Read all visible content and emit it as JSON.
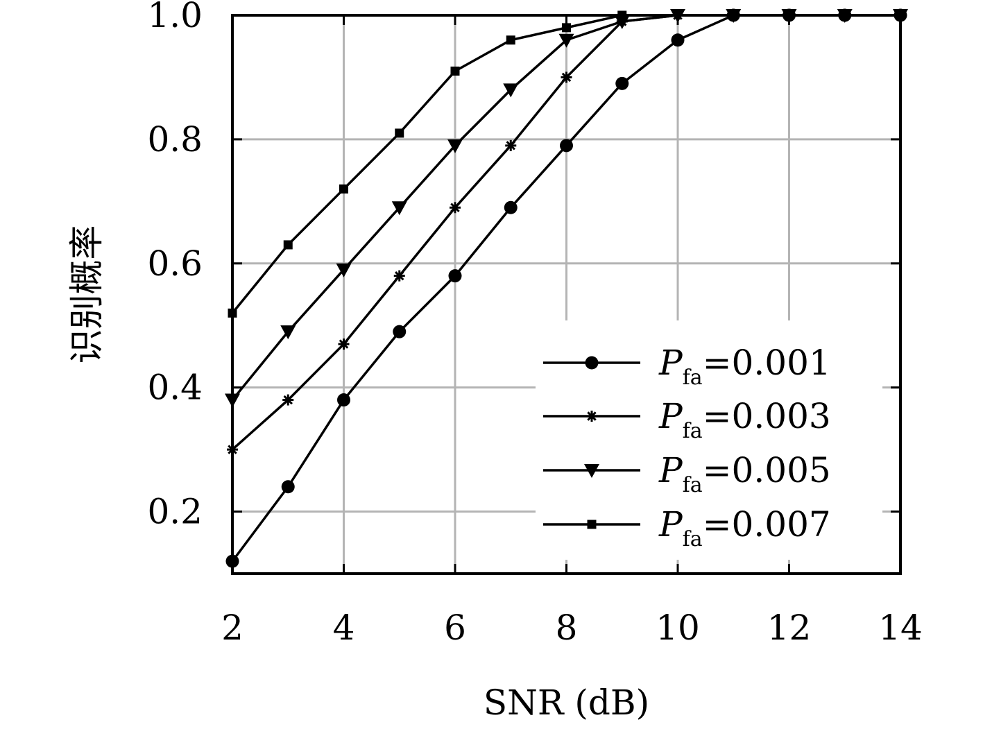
{
  "chart_data": {
    "type": "line",
    "title": "",
    "xlabel": "SNR (dB)",
    "ylabel": "识别概率",
    "xlim": [
      2,
      14
    ],
    "ylim": [
      0.1,
      1.0
    ],
    "xticks": [
      2,
      4,
      6,
      8,
      10,
      12,
      14
    ],
    "yticks": [
      0.2,
      0.4,
      0.6,
      0.8,
      1.0
    ],
    "xtick_labels": [
      "2",
      "4",
      "6",
      "8",
      "10",
      "12",
      "14"
    ],
    "ytick_labels": [
      "0.2",
      "0.4",
      "0.6",
      "0.8",
      "1.0"
    ],
    "grid": true,
    "legend_position": "lower-right",
    "x": [
      2,
      3,
      4,
      5,
      6,
      7,
      8,
      9,
      10,
      11,
      12,
      13,
      14
    ],
    "series": [
      {
        "name": "Pfa=0.001",
        "legend": {
          "var": "P",
          "sub": "fa",
          "rest": "=0.001"
        },
        "marker": "circle",
        "x": [
          2,
          3,
          4,
          5,
          6,
          7,
          8,
          9,
          10,
          11,
          12,
          13,
          14
        ],
        "values": [
          0.12,
          0.24,
          0.38,
          0.49,
          0.58,
          0.69,
          0.79,
          0.89,
          0.96,
          1.0,
          1.0,
          1.0,
          1.0
        ]
      },
      {
        "name": "Pfa=0.003",
        "legend": {
          "var": "P",
          "sub": "fa",
          "rest": "=0.003"
        },
        "marker": "asterisk",
        "x": [
          2,
          3,
          4,
          5,
          6,
          7,
          8,
          9,
          10,
          11,
          12,
          13,
          14
        ],
        "values": [
          0.3,
          0.38,
          0.47,
          0.58,
          0.69,
          0.79,
          0.9,
          0.99,
          1.0,
          1.0,
          1.0,
          1.0,
          1.0
        ]
      },
      {
        "name": "Pfa=0.005",
        "legend": {
          "var": "P",
          "sub": "fa",
          "rest": "=0.005"
        },
        "marker": "triangle-down",
        "x": [
          2,
          3,
          4,
          5,
          6,
          7,
          8,
          9,
          10,
          11,
          12,
          13,
          14
        ],
        "values": [
          0.38,
          0.49,
          0.59,
          0.69,
          0.79,
          0.88,
          0.96,
          0.99,
          1.0,
          1.0,
          1.0,
          1.0,
          1.0
        ]
      },
      {
        "name": "Pfa=0.007",
        "legend": {
          "var": "P",
          "sub": "fa",
          "rest": "=0.007"
        },
        "marker": "square",
        "x": [
          2,
          3,
          4,
          5,
          6,
          7,
          8,
          9
        ],
        "values": [
          0.52,
          0.63,
          0.72,
          0.81,
          0.91,
          0.96,
          0.98,
          1.0
        ]
      }
    ],
    "colors": {
      "line": "#000000",
      "grid": "#b4b4b4",
      "background": "#ffffff"
    }
  }
}
